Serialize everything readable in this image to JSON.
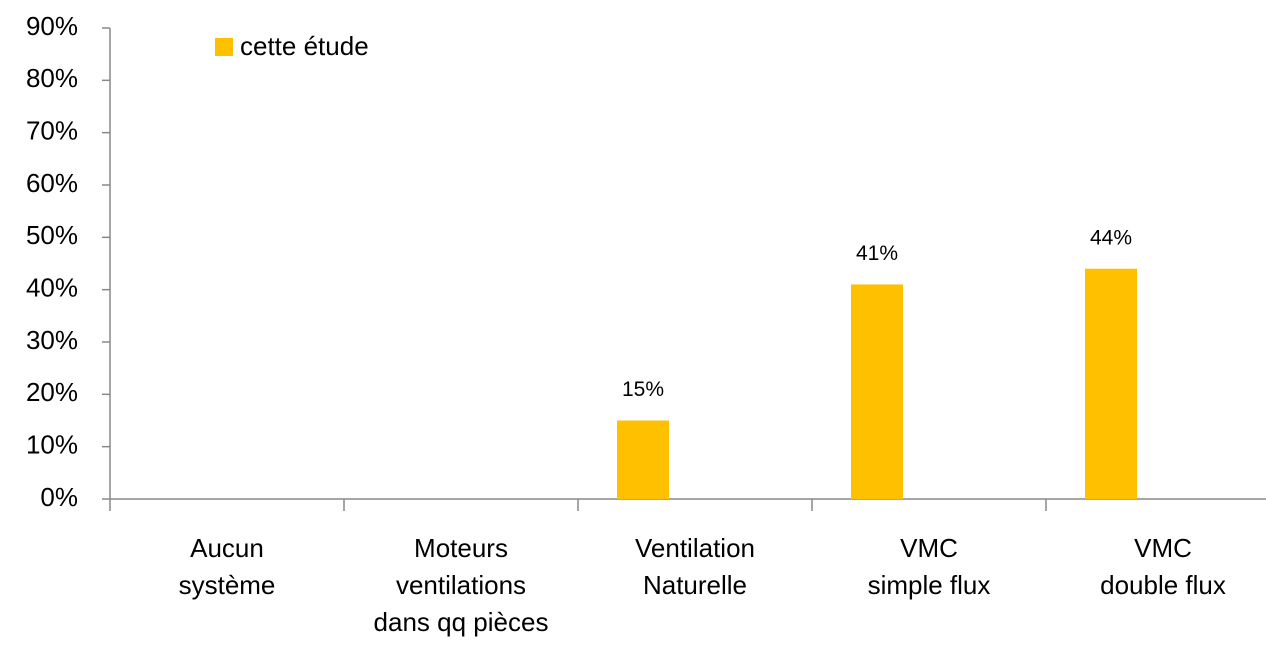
{
  "chart_data": {
    "type": "bar",
    "categories": [
      "Aucun\nsystème",
      "Moteurs\nventilations\ndans qq pièces",
      "Ventilation\nNaturelle",
      "VMC\nsimple flux",
      "VMC\ndouble flux"
    ],
    "series": [
      {
        "name": "cette étude",
        "color": "#ffc000",
        "values": [
          null,
          null,
          15,
          41,
          44
        ],
        "value_labels": [
          null,
          null,
          "15%",
          "41%",
          "44%"
        ]
      }
    ],
    "ylim": [
      0,
      90
    ],
    "yticks": [
      {
        "value": 0,
        "label": "0%"
      },
      {
        "value": 10,
        "label": "10%"
      },
      {
        "value": 20,
        "label": "20%"
      },
      {
        "value": 30,
        "label": "30%"
      },
      {
        "value": 40,
        "label": "40%"
      },
      {
        "value": 50,
        "label": "50%"
      },
      {
        "value": 60,
        "label": "60%"
      },
      {
        "value": 70,
        "label": "70%"
      },
      {
        "value": 80,
        "label": "80%"
      },
      {
        "value": 90,
        "label": "90%"
      }
    ],
    "grid": false,
    "legend": "top-left"
  }
}
